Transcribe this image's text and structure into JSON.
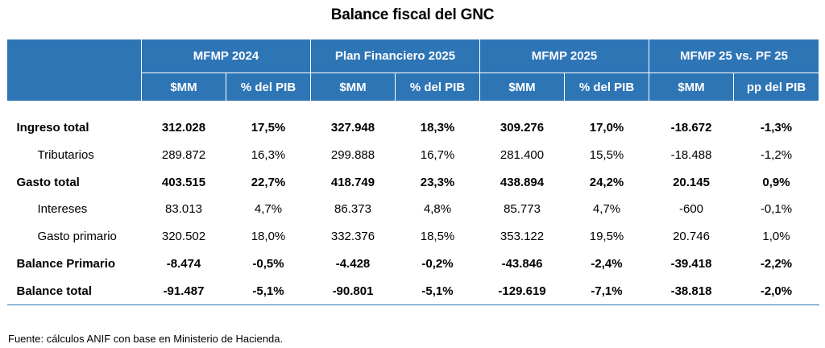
{
  "title": "Balance fiscal del GNC",
  "header": {
    "groups": [
      "MFMP 2024",
      "Plan Financiero 2025",
      "MFMP 2025",
      "MFMP 25 vs. PF 25"
    ],
    "subheaders": [
      "$MM",
      "% del PIB",
      "$MM",
      "% del PIB",
      "$MM",
      "% del PIB",
      "$MM",
      "pp del PIB"
    ]
  },
  "rows": [
    {
      "label": "Ingreso total",
      "bold": true,
      "indent": false,
      "values": [
        "312.028",
        "17,5%",
        "327.948",
        "18,3%",
        "309.276",
        "17,0%",
        "-18.672",
        "-1,3%"
      ]
    },
    {
      "label": "Tributarios",
      "bold": false,
      "indent": true,
      "values": [
        "289.872",
        "16,3%",
        "299.888",
        "16,7%",
        "281.400",
        "15,5%",
        "-18.488",
        "-1,2%"
      ]
    },
    {
      "label": "Gasto total",
      "bold": true,
      "indent": false,
      "values": [
        "403.515",
        "22,7%",
        "418.749",
        "23,3%",
        "438.894",
        "24,2%",
        "20.145",
        "0,9%"
      ]
    },
    {
      "label": "Intereses",
      "bold": false,
      "indent": true,
      "values": [
        "83.013",
        "4,7%",
        "86.373",
        "4,8%",
        "85.773",
        "4,7%",
        "-600",
        "-0,1%"
      ]
    },
    {
      "label": "Gasto primario",
      "bold": false,
      "indent": true,
      "values": [
        "320.502",
        "18,0%",
        "332.376",
        "18,5%",
        "353.122",
        "19,5%",
        "20.746",
        "1,0%"
      ]
    },
    {
      "label": "Balance Primario",
      "bold": true,
      "indent": false,
      "values": [
        "-8.474",
        "-0,5%",
        "-4.428",
        "-0,2%",
        "-43.846",
        "-2,4%",
        "-39.418",
        "-2,2%"
      ]
    },
    {
      "label": "Balance total",
      "bold": true,
      "indent": false,
      "values": [
        "-91.487",
        "-5,1%",
        "-90.801",
        "-5,1%",
        "-129.619",
        "-7,1%",
        "-38.818",
        "-2,0%"
      ]
    }
  ],
  "source": "Fuente: cálculos ANIF con base en Ministerio de Hacienda.",
  "colors": {
    "header_bg": "#2e75b6",
    "header_text": "#ffffff"
  }
}
